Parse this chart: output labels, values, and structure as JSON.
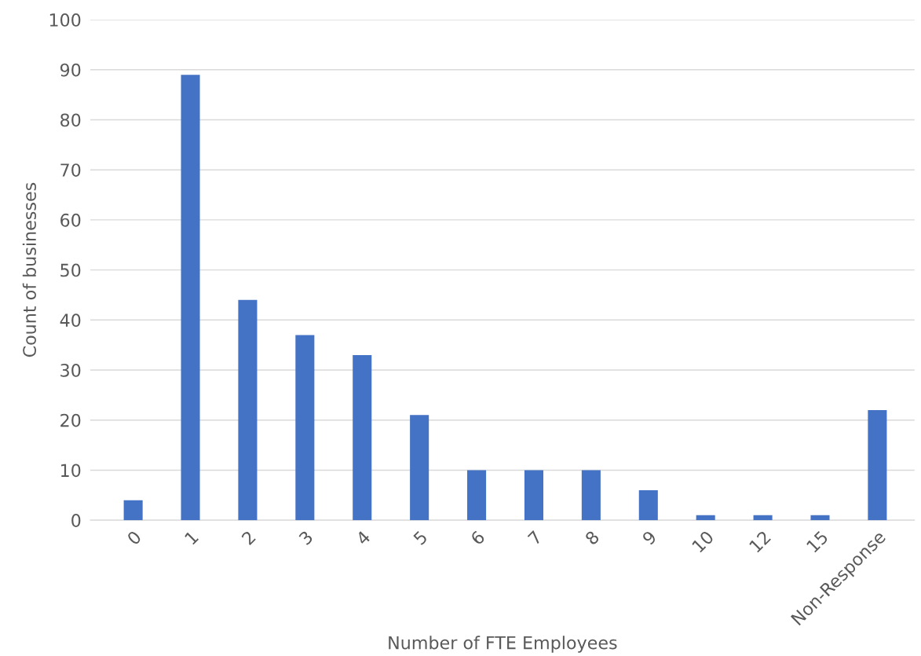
{
  "chart_data": {
    "type": "bar",
    "xlabel": "Number of FTE Employees",
    "ylabel": "Count of businesses",
    "categories": [
      "0",
      "1",
      "2",
      "3",
      "4",
      "5",
      "6",
      "7",
      "8",
      "9",
      "10",
      "12",
      "15",
      "Non-Response"
    ],
    "values": [
      4,
      89,
      44,
      37,
      33,
      21,
      10,
      10,
      10,
      6,
      1,
      1,
      1,
      22
    ],
    "color": "#4472c4",
    "ylim": [
      0,
      100
    ],
    "yticks": [
      0,
      10,
      20,
      30,
      40,
      50,
      60,
      70,
      80,
      90,
      100
    ],
    "grid": "y"
  }
}
